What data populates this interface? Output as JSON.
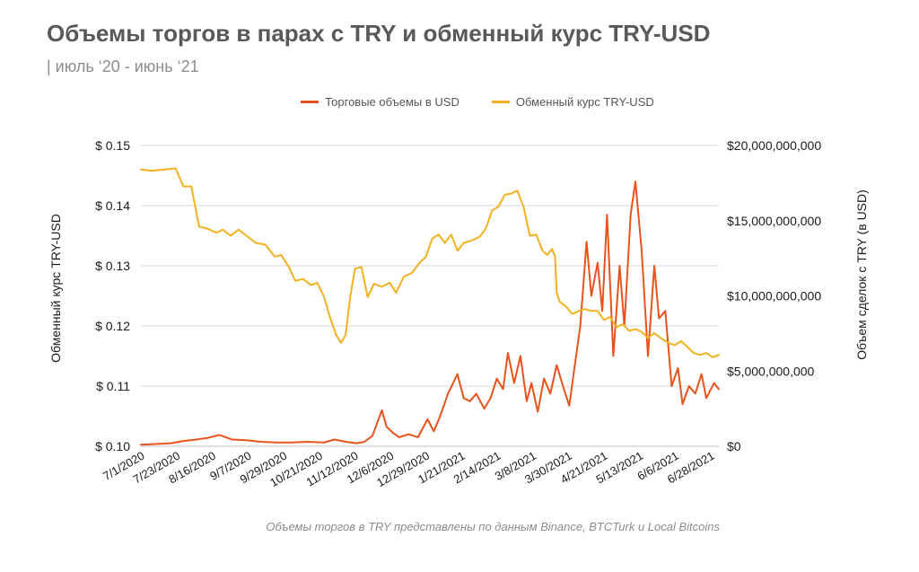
{
  "header": {
    "title": "Объемы торгов в парах с TRY и обменный курс TRY-USD",
    "subtitle": "| июль ‘20 - июнь ‘21"
  },
  "footer": {
    "source": "Объемы торгов в TRY представлены по данным Binance, BTCTurk и Local Bitcoins"
  },
  "colors": {
    "volume": "#e8531d",
    "rate": "#f3b120",
    "grid": "#d9d9d9",
    "axis_text": "#1a1a1a"
  },
  "chart_data": {
    "type": "line",
    "legend_position": "top",
    "grid": true,
    "x_tick_labels": [
      "7/1/2020",
      "7/23/2020",
      "8/16/2020",
      "9/7/2020",
      "9/29/2020",
      "10/21/2020",
      "11/12/2020",
      "12/6/2020",
      "12/29/2020",
      "1/21/2021",
      "2/14/2021",
      "3/8/2021",
      "3/30/2021",
      "4/21/2021",
      "5/13/2021",
      "6/6/2021",
      "6/28/2021"
    ],
    "y_left": {
      "label": "Обменный курс TRY-USD",
      "min": 0.1,
      "max": 0.15,
      "ticks": [
        0.1,
        0.11,
        0.12,
        0.13,
        0.14,
        0.15
      ],
      "tick_labels": [
        "$ 0.10",
        "$ 0.11",
        "$ 0.12",
        "$ 0.13",
        "$ 0.14",
        "$ 0.15"
      ]
    },
    "y_right": {
      "label": "Объем сделок с TRY (в USD)",
      "min": 0,
      "max": 20000000000,
      "ticks": [
        0,
        5000000000,
        10000000000,
        15000000000,
        20000000000
      ],
      "tick_labels": [
        "$0",
        "$5,000,000,000",
        "$10,000,000,000",
        "$15,000,000,000",
        "$20,000,000,000"
      ]
    },
    "series": [
      {
        "name": "Торговые объемы в USD",
        "axis": "right",
        "color": "#e8531d",
        "points": [
          [
            "2020-07-01",
            100000000
          ],
          [
            "2020-07-10",
            150000000
          ],
          [
            "2020-07-20",
            200000000
          ],
          [
            "2020-07-28",
            350000000
          ],
          [
            "2020-08-05",
            450000000
          ],
          [
            "2020-08-12",
            550000000
          ],
          [
            "2020-08-20",
            750000000
          ],
          [
            "2020-08-28",
            450000000
          ],
          [
            "2020-09-06",
            400000000
          ],
          [
            "2020-09-15",
            300000000
          ],
          [
            "2020-09-25",
            250000000
          ],
          [
            "2020-10-05",
            250000000
          ],
          [
            "2020-10-15",
            300000000
          ],
          [
            "2020-10-25",
            250000000
          ],
          [
            "2020-11-01",
            450000000
          ],
          [
            "2020-11-08",
            300000000
          ],
          [
            "2020-11-15",
            200000000
          ],
          [
            "2020-11-20",
            300000000
          ],
          [
            "2020-11-25",
            700000000
          ],
          [
            "2020-12-01",
            2400000000
          ],
          [
            "2020-12-04",
            1300000000
          ],
          [
            "2020-12-08",
            900000000
          ],
          [
            "2020-12-12",
            600000000
          ],
          [
            "2020-12-18",
            800000000
          ],
          [
            "2020-12-24",
            600000000
          ],
          [
            "2020-12-30",
            1800000000
          ],
          [
            "2021-01-03",
            1000000000
          ],
          [
            "2021-01-07",
            2000000000
          ],
          [
            "2021-01-12",
            3500000000
          ],
          [
            "2021-01-18",
            4800000000
          ],
          [
            "2021-01-22",
            3200000000
          ],
          [
            "2021-01-26",
            3000000000
          ],
          [
            "2021-01-30",
            3500000000
          ],
          [
            "2021-02-04",
            2500000000
          ],
          [
            "2021-02-08",
            3200000000
          ],
          [
            "2021-02-12",
            4500000000
          ],
          [
            "2021-02-16",
            3800000000
          ],
          [
            "2021-02-19",
            6200000000
          ],
          [
            "2021-02-23",
            4200000000
          ],
          [
            "2021-02-27",
            6000000000
          ],
          [
            "2021-03-03",
            3000000000
          ],
          [
            "2021-03-06",
            4200000000
          ],
          [
            "2021-03-10",
            2300000000
          ],
          [
            "2021-03-14",
            4500000000
          ],
          [
            "2021-03-18",
            3500000000
          ],
          [
            "2021-03-22",
            5400000000
          ],
          [
            "2021-03-26",
            4000000000
          ],
          [
            "2021-03-30",
            2700000000
          ],
          [
            "2021-04-02",
            5000000000
          ],
          [
            "2021-04-06",
            8000000000
          ],
          [
            "2021-04-10",
            13600000000
          ],
          [
            "2021-04-13",
            10000000000
          ],
          [
            "2021-04-17",
            12200000000
          ],
          [
            "2021-04-20",
            9000000000
          ],
          [
            "2021-04-23",
            15400000000
          ],
          [
            "2021-04-27",
            6000000000
          ],
          [
            "2021-05-01",
            12000000000
          ],
          [
            "2021-05-04",
            8000000000
          ],
          [
            "2021-05-08",
            15400000000
          ],
          [
            "2021-05-11",
            17600000000
          ],
          [
            "2021-05-15",
            13000000000
          ],
          [
            "2021-05-19",
            6000000000
          ],
          [
            "2021-05-23",
            12000000000
          ],
          [
            "2021-05-26",
            8500000000
          ],
          [
            "2021-05-30",
            9000000000
          ],
          [
            "2021-06-03",
            4000000000
          ],
          [
            "2021-06-07",
            5200000000
          ],
          [
            "2021-06-10",
            2800000000
          ],
          [
            "2021-06-14",
            4000000000
          ],
          [
            "2021-06-18",
            3500000000
          ],
          [
            "2021-06-22",
            4800000000
          ],
          [
            "2021-06-25",
            3200000000
          ],
          [
            "2021-06-30",
            4200000000
          ],
          [
            "2021-07-03",
            3800000000
          ]
        ]
      },
      {
        "name": "Обменный курс TRY-USD",
        "axis": "left",
        "color": "#f3b120",
        "points": [
          [
            "2020-07-01",
            0.146
          ],
          [
            "2020-07-08",
            0.1458
          ],
          [
            "2020-07-16",
            0.146
          ],
          [
            "2020-07-23",
            0.1462
          ],
          [
            "2020-07-28",
            0.1432
          ],
          [
            "2020-08-02",
            0.1432
          ],
          [
            "2020-08-07",
            0.1365
          ],
          [
            "2020-08-12",
            0.1362
          ],
          [
            "2020-08-18",
            0.1355
          ],
          [
            "2020-08-22",
            0.136
          ],
          [
            "2020-08-27",
            0.135
          ],
          [
            "2020-09-01",
            0.136
          ],
          [
            "2020-09-06",
            0.135
          ],
          [
            "2020-09-12",
            0.1338
          ],
          [
            "2020-09-18",
            0.1335
          ],
          [
            "2020-09-24",
            0.1315
          ],
          [
            "2020-09-28",
            0.1318
          ],
          [
            "2020-10-03",
            0.1298
          ],
          [
            "2020-10-07",
            0.1275
          ],
          [
            "2020-10-12",
            0.1278
          ],
          [
            "2020-10-17",
            0.1268
          ],
          [
            "2020-10-21",
            0.1272
          ],
          [
            "2020-10-25",
            0.125
          ],
          [
            "2020-10-29",
            0.1215
          ],
          [
            "2020-11-02",
            0.1185
          ],
          [
            "2020-11-05",
            0.1172
          ],
          [
            "2020-11-08",
            0.1185
          ],
          [
            "2020-11-11",
            0.125
          ],
          [
            "2020-11-14",
            0.1295
          ],
          [
            "2020-11-18",
            0.1298
          ],
          [
            "2020-11-22",
            0.1248
          ],
          [
            "2020-11-26",
            0.127
          ],
          [
            "2020-12-01",
            0.1265
          ],
          [
            "2020-12-06",
            0.1272
          ],
          [
            "2020-12-10",
            0.1255
          ],
          [
            "2020-12-15",
            0.1282
          ],
          [
            "2020-12-20",
            0.1288
          ],
          [
            "2020-12-25",
            0.1305
          ],
          [
            "2020-12-29",
            0.1315
          ],
          [
            "2021-01-02",
            0.1345
          ],
          [
            "2021-01-06",
            0.1352
          ],
          [
            "2021-01-10",
            0.1338
          ],
          [
            "2021-01-14",
            0.1352
          ],
          [
            "2021-01-18",
            0.1325
          ],
          [
            "2021-01-22",
            0.1338
          ],
          [
            "2021-01-27",
            0.1342
          ],
          [
            "2021-02-01",
            0.1348
          ],
          [
            "2021-02-05",
            0.1362
          ],
          [
            "2021-02-09",
            0.1392
          ],
          [
            "2021-02-13",
            0.1398
          ],
          [
            "2021-02-17",
            0.1418
          ],
          [
            "2021-02-21",
            0.142
          ],
          [
            "2021-02-25",
            0.1425
          ],
          [
            "2021-03-01",
            0.1398
          ],
          [
            "2021-03-05",
            0.135
          ],
          [
            "2021-03-09",
            0.1352
          ],
          [
            "2021-03-13",
            0.1325
          ],
          [
            "2021-03-16",
            0.1318
          ],
          [
            "2021-03-19",
            0.1328
          ],
          [
            "2021-03-21",
            0.1315
          ],
          [
            "2021-03-22",
            0.1255
          ],
          [
            "2021-03-24",
            0.124
          ],
          [
            "2021-03-28",
            0.1232
          ],
          [
            "2021-04-01",
            0.122
          ],
          [
            "2021-04-05",
            0.1225
          ],
          [
            "2021-04-09",
            0.1228
          ],
          [
            "2021-04-13",
            0.1225
          ],
          [
            "2021-04-17",
            0.1225
          ],
          [
            "2021-04-21",
            0.121
          ],
          [
            "2021-04-25",
            0.1215
          ],
          [
            "2021-04-29",
            0.1198
          ],
          [
            "2021-05-03",
            0.1203
          ],
          [
            "2021-05-07",
            0.1192
          ],
          [
            "2021-05-11",
            0.1195
          ],
          [
            "2021-05-15",
            0.119
          ],
          [
            "2021-05-19",
            0.118
          ],
          [
            "2021-05-23",
            0.1188
          ],
          [
            "2021-05-27",
            0.118
          ],
          [
            "2021-06-01",
            0.1172
          ],
          [
            "2021-06-05",
            0.1168
          ],
          [
            "2021-06-09",
            0.1175
          ],
          [
            "2021-06-13",
            0.1165
          ],
          [
            "2021-06-17",
            0.1155
          ],
          [
            "2021-06-21",
            0.1152
          ],
          [
            "2021-06-25",
            0.1155
          ],
          [
            "2021-06-29",
            0.1148
          ],
          [
            "2021-07-03",
            0.1152
          ]
        ]
      }
    ]
  }
}
